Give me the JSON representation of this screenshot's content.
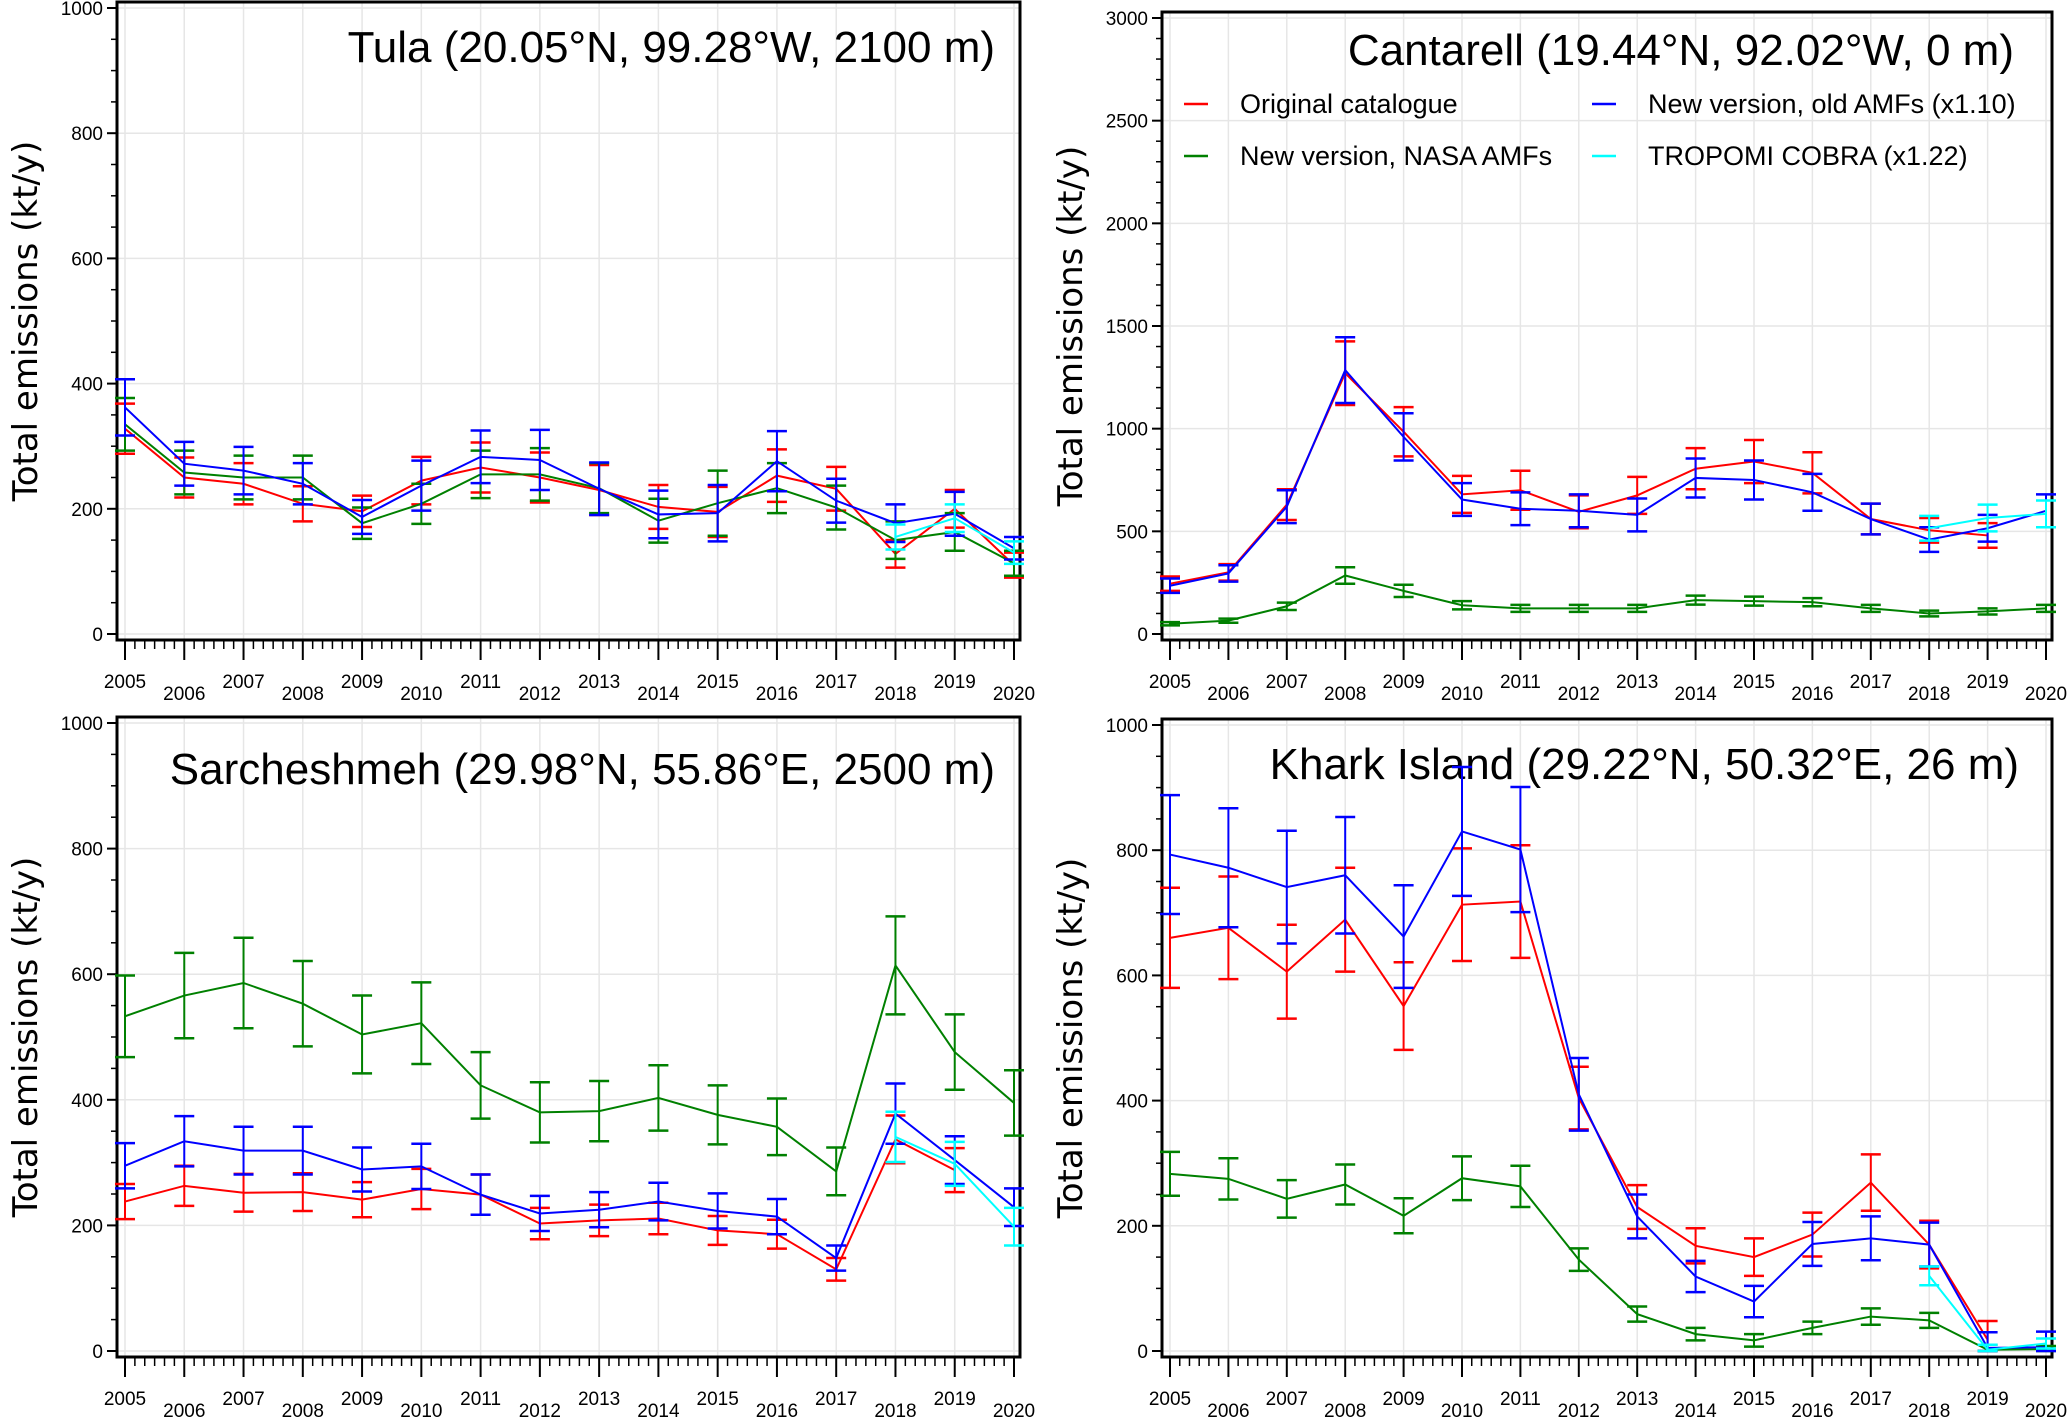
{
  "figure": {
    "series_colors": {
      "original": "#ff0000",
      "nasa": "#008000",
      "old_amf": "#0000ff",
      "tropomi": "#00ffff"
    }
  },
  "chart_data": [
    {
      "type": "line",
      "id": "tula",
      "title": "Tula (20.05°N, 99.28°W, 2100 m)",
      "xlabel": "",
      "ylabel": "Total emissions (kt/y)",
      "ylim": [
        0,
        1000
      ],
      "yticks": [
        0,
        200,
        400,
        600,
        800,
        1000
      ],
      "yticklabels": [
        "0",
        "200",
        "400",
        "600",
        "800",
        "1000"
      ],
      "xlim": [
        2005,
        2020
      ],
      "xticks": [
        2005,
        2006,
        2007,
        2008,
        2009,
        2010,
        2011,
        2012,
        2013,
        2014,
        2015,
        2016,
        2017,
        2018,
        2019,
        2020
      ],
      "xticklabels": [
        "2005",
        "2006",
        "2007",
        "2008",
        "2009",
        "2010",
        "2011",
        "2012",
        "2013",
        "2014",
        "2015",
        "2016",
        "2017",
        "2018",
        "2019",
        "2020"
      ],
      "grid": true,
      "series": [
        {
          "name": "Original catalogue",
          "key": "original",
          "x": [
            2005,
            2006,
            2007,
            2008,
            2009,
            2010,
            2011,
            2012,
            2013,
            2014,
            2015,
            2016,
            2017,
            2018,
            2019,
            2020
          ],
          "y": [
            328,
            250,
            240,
            208,
            196,
            245,
            266,
            250,
            230,
            203,
            195,
            253,
            232,
            128,
            200,
            110
          ],
          "err": [
            40,
            32,
            33,
            28,
            25,
            38,
            40,
            40,
            40,
            35,
            40,
            42,
            35,
            22,
            30,
            20
          ]
        },
        {
          "name": "New version, NASA AMFs",
          "key": "nasa",
          "x": [
            2005,
            2006,
            2007,
            2008,
            2009,
            2010,
            2011,
            2012,
            2013,
            2014,
            2015,
            2016,
            2017,
            2018,
            2019,
            2020
          ],
          "y": [
            335,
            258,
            250,
            250,
            177,
            208,
            255,
            255,
            233,
            181,
            209,
            233,
            202,
            150,
            163,
            113
          ],
          "err": [
            42,
            35,
            35,
            35,
            25,
            32,
            38,
            42,
            40,
            35,
            52,
            40,
            35,
            30,
            30,
            20
          ]
        },
        {
          "name": "New version, old AMFs (x1.10)",
          "key": "old_amf",
          "x": [
            2005,
            2006,
            2007,
            2008,
            2009,
            2010,
            2011,
            2012,
            2013,
            2014,
            2015,
            2016,
            2017,
            2018,
            2019,
            2020
          ],
          "y": [
            362,
            272,
            261,
            240,
            187,
            237,
            283,
            278,
            232,
            191,
            193,
            276,
            213,
            177,
            192,
            137
          ],
          "err": [
            45,
            35,
            38,
            33,
            27,
            40,
            42,
            48,
            42,
            38,
            45,
            48,
            35,
            30,
            35,
            18
          ]
        },
        {
          "name": "TROPOMI COBRA (x1.22)",
          "key": "tropomi",
          "x": [
            2018,
            2019,
            2020
          ],
          "y": [
            155,
            185,
            130
          ],
          "err": [
            20,
            22,
            18
          ]
        }
      ]
    },
    {
      "type": "line",
      "id": "cantarell",
      "title": "Cantarell (19.44°N, 92.02°W, 0 m)",
      "xlabel": "",
      "ylabel": "Total emissions (kt/y)",
      "ylim": [
        0,
        3000
      ],
      "yticks": [
        0,
        500,
        1000,
        1500,
        2000,
        2500,
        3000
      ],
      "yticklabels": [
        "0",
        "500",
        "1000",
        "1500",
        "2000",
        "2500",
        "3000"
      ],
      "xlim": [
        2005,
        2020
      ],
      "xticks": [
        2005,
        2006,
        2007,
        2008,
        2009,
        2010,
        2011,
        2012,
        2013,
        2014,
        2015,
        2016,
        2017,
        2018,
        2019,
        2020
      ],
      "xticklabels": [
        "2005",
        "2006",
        "2007",
        "2008",
        "2009",
        "2010",
        "2011",
        "2012",
        "2013",
        "2014",
        "2015",
        "2016",
        "2017",
        "2018",
        "2019",
        "2020"
      ],
      "grid": true,
      "legend": {
        "placement": "top",
        "entries": [
          {
            "label": "Original catalogue",
            "key": "original"
          },
          {
            "label": "New version, old AMFs (x1.10)",
            "key": "old_amf"
          },
          {
            "label": "New version, NASA AMFs",
            "key": "nasa"
          },
          {
            "label": "TROPOMI COBRA (x1.22)",
            "key": "tropomi"
          }
        ]
      },
      "series": [
        {
          "name": "Original catalogue",
          "key": "original",
          "x": [
            2005,
            2006,
            2007,
            2008,
            2009,
            2010,
            2011,
            2012,
            2013,
            2014,
            2015,
            2016,
            2017,
            2018,
            2019
          ],
          "y": [
            245,
            300,
            630,
            1270,
            985,
            680,
            700,
            595,
            675,
            805,
            840,
            785,
            560,
            505,
            480
          ],
          "err": [
            35,
            40,
            75,
            155,
            120,
            90,
            95,
            80,
            90,
            100,
            105,
            100,
            75,
            60,
            60
          ]
        },
        {
          "name": "New version, NASA AMFs",
          "key": "nasa",
          "x": [
            2005,
            2006,
            2007,
            2008,
            2009,
            2010,
            2011,
            2012,
            2013,
            2014,
            2015,
            2016,
            2017,
            2018,
            2019,
            2020
          ],
          "y": [
            50,
            65,
            135,
            285,
            210,
            140,
            125,
            125,
            125,
            165,
            160,
            155,
            125,
            100,
            110,
            125
          ],
          "err": [
            8,
            10,
            18,
            40,
            30,
            20,
            17,
            17,
            17,
            22,
            22,
            20,
            17,
            14,
            15,
            17
          ]
        },
        {
          "name": "New version, old AMFs (x1.10)",
          "key": "old_amf",
          "x": [
            2005,
            2006,
            2007,
            2008,
            2009,
            2010,
            2011,
            2012,
            2013,
            2014,
            2015,
            2016,
            2017,
            2018,
            2019,
            2020
          ],
          "y": [
            235,
            295,
            620,
            1285,
            960,
            655,
            610,
            600,
            580,
            760,
            750,
            690,
            560,
            460,
            515,
            600
          ],
          "err": [
            35,
            40,
            80,
            160,
            115,
            80,
            80,
            80,
            80,
            95,
            95,
            90,
            75,
            60,
            65,
            80
          ]
        },
        {
          "name": "TROPOMI COBRA (x1.22)",
          "key": "tropomi",
          "x": [
            2018,
            2019,
            2020
          ],
          "y": [
            515,
            565,
            585
          ],
          "err": [
            60,
            65,
            65
          ]
        }
      ]
    },
    {
      "type": "line",
      "id": "sarcheshmeh",
      "title": "Sarcheshmeh (29.98°N, 55.86°E, 2500 m)",
      "xlabel": "",
      "ylabel": "Total emissions (kt/y)",
      "ylim": [
        0,
        1000
      ],
      "yticks": [
        0,
        200,
        400,
        600,
        800,
        1000
      ],
      "yticklabels": [
        "0",
        "200",
        "400",
        "600",
        "800",
        "1000"
      ],
      "xlim": [
        2005,
        2020
      ],
      "xticks": [
        2005,
        2006,
        2007,
        2008,
        2009,
        2010,
        2011,
        2012,
        2013,
        2014,
        2015,
        2016,
        2017,
        2018,
        2019,
        2020
      ],
      "xticklabels": [
        "2005",
        "2006",
        "2007",
        "2008",
        "2009",
        "2010",
        "2011",
        "2012",
        "2013",
        "2014",
        "2015",
        "2016",
        "2017",
        "2018",
        "2019",
        "2020"
      ],
      "grid": true,
      "series": [
        {
          "name": "Original catalogue",
          "key": "original",
          "x": [
            2005,
            2006,
            2007,
            2008,
            2009,
            2010,
            2011,
            2012,
            2013,
            2014,
            2015,
            2016,
            2017,
            2018,
            2019
          ],
          "y": [
            238,
            263,
            252,
            253,
            241,
            258,
            249,
            203,
            208,
            211,
            192,
            186,
            130,
            337,
            288
          ],
          "err": [
            28,
            32,
            30,
            30,
            28,
            32,
            32,
            25,
            25,
            25,
            23,
            23,
            18,
            38,
            35
          ]
        },
        {
          "name": "New version, NASA AMFs",
          "key": "nasa",
          "x": [
            2005,
            2006,
            2007,
            2008,
            2009,
            2010,
            2011,
            2012,
            2013,
            2014,
            2015,
            2016,
            2017,
            2018,
            2019,
            2020
          ],
          "y": [
            533,
            566,
            586,
            553,
            504,
            522,
            423,
            380,
            382,
            403,
            376,
            357,
            286,
            614,
            476,
            395
          ],
          "err": [
            65,
            68,
            72,
            68,
            62,
            65,
            53,
            48,
            48,
            52,
            47,
            45,
            38,
            78,
            60,
            52
          ]
        },
        {
          "name": "New version, old AMFs (x1.10)",
          "key": "old_amf",
          "x": [
            2005,
            2006,
            2007,
            2008,
            2009,
            2010,
            2011,
            2012,
            2013,
            2014,
            2015,
            2016,
            2017,
            2018,
            2019,
            2020
          ],
          "y": [
            295,
            334,
            319,
            319,
            289,
            294,
            249,
            219,
            225,
            238,
            223,
            214,
            148,
            378,
            304,
            229
          ],
          "err": [
            36,
            40,
            38,
            38,
            35,
            36,
            32,
            28,
            28,
            30,
            28,
            28,
            20,
            48,
            38,
            30
          ]
        },
        {
          "name": "TROPOMI COBRA (x1.22)",
          "key": "tropomi",
          "x": [
            2018,
            2019,
            2020
          ],
          "y": [
            341,
            298,
            198
          ],
          "err": [
            40,
            35,
            30
          ]
        }
      ]
    },
    {
      "type": "line",
      "id": "khark-island",
      "title": "Khark Island (29.22°N, 50.32°E, 26 m)",
      "xlabel": "",
      "ylabel": "Total emissions (kt/y)",
      "ylim": [
        0,
        1000
      ],
      "yticks": [
        0,
        200,
        400,
        600,
        800,
        1000
      ],
      "yticklabels": [
        "0",
        "200",
        "400",
        "600",
        "800",
        "1000"
      ],
      "xlim": [
        2005,
        2020
      ],
      "xticks": [
        2005,
        2006,
        2007,
        2008,
        2009,
        2010,
        2011,
        2012,
        2013,
        2014,
        2015,
        2016,
        2017,
        2018,
        2019,
        2020
      ],
      "xticklabels": [
        "2005",
        "2006",
        "2007",
        "2008",
        "2009",
        "2010",
        "2011",
        "2012",
        "2013",
        "2014",
        "2015",
        "2016",
        "2017",
        "2018",
        "2019",
        "2020"
      ],
      "grid": true,
      "series": [
        {
          "name": "Original catalogue",
          "key": "original",
          "x": [
            2005,
            2006,
            2007,
            2008,
            2009,
            2010,
            2011,
            2012,
            2013,
            2014,
            2015,
            2016,
            2017,
            2018,
            2019
          ],
          "y": [
            660,
            676,
            606,
            689,
            551,
            713,
            718,
            404,
            230,
            168,
            150,
            186,
            269,
            170,
            18
          ],
          "err": [
            80,
            82,
            75,
            83,
            70,
            90,
            90,
            50,
            35,
            28,
            30,
            35,
            45,
            38,
            30
          ]
        },
        {
          "name": "New version, NASA AMFs",
          "key": "nasa",
          "x": [
            2005,
            2006,
            2007,
            2008,
            2009,
            2010,
            2011,
            2012,
            2013,
            2014,
            2015,
            2016,
            2017,
            2018,
            2019,
            2020
          ],
          "y": [
            283,
            275,
            243,
            266,
            216,
            276,
            263,
            146,
            59,
            27,
            17,
            37,
            55,
            49,
            2,
            3
          ],
          "err": [
            35,
            33,
            30,
            32,
            28,
            35,
            33,
            18,
            12,
            10,
            10,
            10,
            13,
            12,
            8,
            5
          ]
        },
        {
          "name": "New version, old AMFs (x1.10)",
          "key": "old_amf",
          "x": [
            2005,
            2006,
            2007,
            2008,
            2009,
            2010,
            2011,
            2012,
            2013,
            2014,
            2015,
            2016,
            2017,
            2018,
            2019,
            2020
          ],
          "y": [
            793,
            772,
            741,
            760,
            662,
            830,
            801,
            410,
            215,
            119,
            79,
            171,
            180,
            170,
            5,
            6
          ],
          "err": [
            95,
            95,
            90,
            93,
            82,
            103,
            100,
            58,
            35,
            25,
            25,
            35,
            35,
            35,
            25,
            25
          ]
        },
        {
          "name": "TROPOMI COBRA (x1.22)",
          "key": "tropomi",
          "x": [
            2018,
            2019,
            2020
          ],
          "y": [
            120,
            2,
            12
          ],
          "err": [
            15,
            8,
            8
          ]
        }
      ]
    }
  ]
}
